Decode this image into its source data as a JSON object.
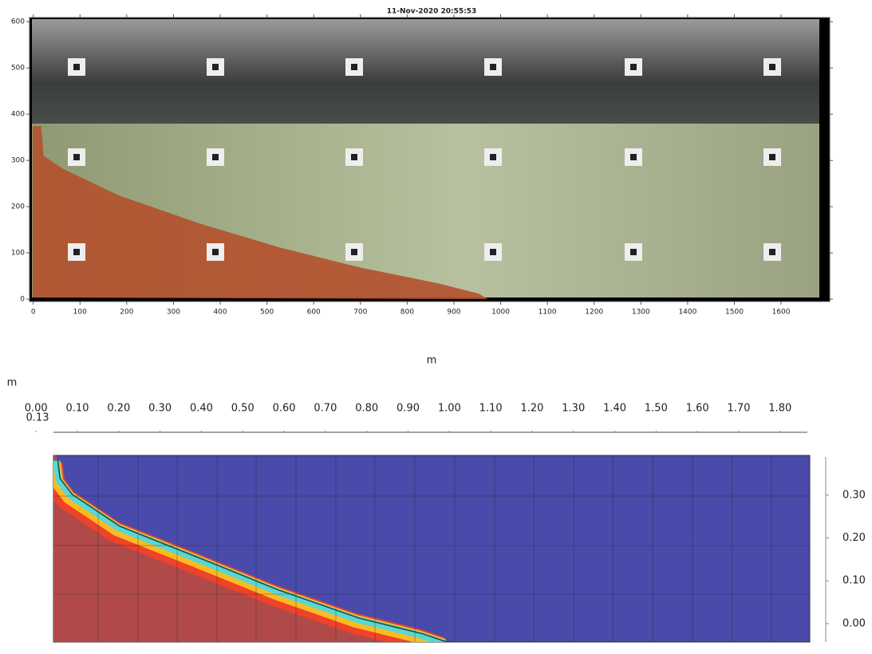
{
  "chart_data": [
    {
      "type": "line",
      "title": "11-Nov-2020 20:55:53",
      "x": [
        17,
        22,
        65,
        184,
        355,
        526,
        697,
        867,
        953,
        973
      ],
      "values": [
        374,
        310,
        281,
        224,
        164,
        112,
        69,
        34,
        12,
        0
      ],
      "color": "#e01010",
      "xlim": [
        -8,
        1704
      ],
      "ylim": [
        -5,
        609
      ],
      "xticks": [
        0,
        100,
        200,
        300,
        400,
        500,
        600,
        700,
        800,
        900,
        1000,
        1100,
        1200,
        1300,
        1400,
        1500,
        1600
      ],
      "yticks": [
        0,
        100,
        200,
        300,
        400,
        500,
        600
      ]
    },
    {
      "type": "line",
      "x_label": "m",
      "y_label": "m",
      "annotation": "0.13",
      "x": [
        0.052,
        0.058,
        0.087,
        0.203,
        0.396,
        0.588,
        0.781,
        0.936,
        0.994
      ],
      "values": [
        0.385,
        0.339,
        0.302,
        0.227,
        0.153,
        0.078,
        0.013,
        -0.024,
        -0.043
      ],
      "color": "#1c4a40",
      "xlim": [
        -0.039,
        1.866
      ],
      "ylim": [
        -0.043,
        0.389
      ],
      "xticks": [
        {
          "value": 0,
          "label": "0.00"
        },
        {
          "value": 0.1,
          "label": "0.10"
        },
        {
          "value": 0.2,
          "label": "0.20"
        },
        {
          "value": 0.3,
          "label": "0.30"
        },
        {
          "value": 0.4,
          "label": "0.40"
        },
        {
          "value": 0.5,
          "label": "0.50"
        },
        {
          "value": 0.6,
          "label": "0.60"
        },
        {
          "value": 0.7,
          "label": "0.70"
        },
        {
          "value": 0.8,
          "label": "0.80"
        },
        {
          "value": 0.9,
          "label": "0.90"
        },
        {
          "value": 1,
          "label": "1.00"
        },
        {
          "value": 1.1,
          "label": "1.10"
        },
        {
          "value": 1.2,
          "label": "1.20"
        },
        {
          "value": 1.3,
          "label": "1.30"
        },
        {
          "value": 1.4,
          "label": "1.40"
        },
        {
          "value": 1.5,
          "label": "1.50"
        },
        {
          "value": 1.6,
          "label": "1.60"
        },
        {
          "value": 1.7,
          "label": "1.70"
        },
        {
          "value": 1.8,
          "label": "1.80"
        }
      ],
      "yticks": [
        {
          "value": 0,
          "label": "0.00"
        },
        {
          "value": 0.1,
          "label": "0.10"
        },
        {
          "value": 0.2,
          "label": "0.20"
        },
        {
          "value": 0.3,
          "label": "0.30"
        }
      ]
    }
  ]
}
